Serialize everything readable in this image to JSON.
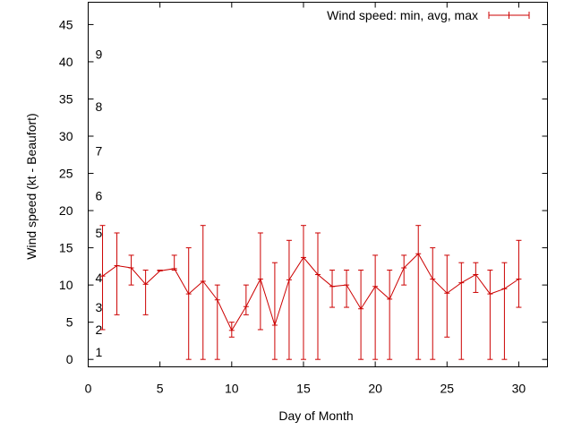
{
  "chart_data": {
    "type": "line",
    "title": "",
    "xlabel": "Day of Month",
    "ylabel": "Wind speed (kt - Beaufort)",
    "xlim": [
      0,
      32
    ],
    "ylim": [
      -1,
      48
    ],
    "x_ticks": [
      0,
      5,
      10,
      15,
      20,
      25,
      30
    ],
    "y_ticks": [
      0,
      5,
      10,
      15,
      20,
      25,
      30,
      35,
      40,
      45
    ],
    "grid": false,
    "legend_position": "top-right",
    "beaufort_labels": [
      {
        "label": "1",
        "kt": 1
      },
      {
        "label": "2",
        "kt": 4
      },
      {
        "label": "3",
        "kt": 7
      },
      {
        "label": "4",
        "kt": 11
      },
      {
        "label": "5",
        "kt": 17
      },
      {
        "label": "6",
        "kt": 22
      },
      {
        "label": "7",
        "kt": 28
      },
      {
        "label": "8",
        "kt": 34
      },
      {
        "label": "9",
        "kt": 41
      }
    ],
    "series": [
      {
        "name": "Wind speed: min, avg, max",
        "color": "#cc0000",
        "style": "line-errorbars",
        "x": [
          1,
          2,
          3,
          4,
          5,
          6,
          7,
          8,
          9,
          10,
          11,
          12,
          13,
          14,
          15,
          16,
          17,
          18,
          19,
          20,
          21,
          22,
          23,
          24,
          25,
          26,
          27,
          28,
          29,
          30
        ],
        "avg": [
          11.2,
          12.6,
          12.3,
          10.1,
          11.9,
          12.2,
          8.8,
          10.5,
          8.0,
          3.9,
          7.1,
          10.8,
          4.6,
          10.7,
          13.7,
          11.4,
          9.8,
          10.0,
          6.8,
          9.8,
          8.1,
          12.3,
          14.2,
          10.8,
          8.9,
          10.3,
          11.4,
          8.8,
          9.5,
          10.8
        ],
        "min": [
          4,
          6,
          10,
          6,
          12,
          12,
          0,
          0,
          0,
          3,
          6,
          4,
          0,
          0,
          0,
          0,
          7,
          7,
          0,
          0,
          0,
          10,
          0,
          0,
          3,
          0,
          9,
          0,
          0,
          7
        ],
        "max": [
          18,
          17,
          14,
          12,
          12,
          14,
          15,
          18,
          10,
          5,
          10,
          17,
          13,
          16,
          18,
          17,
          12,
          12,
          12,
          14,
          12,
          14,
          18,
          15,
          14,
          13,
          13,
          12,
          13,
          16
        ]
      }
    ]
  }
}
